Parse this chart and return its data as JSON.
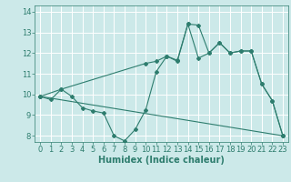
{
  "xlabel": "Humidex (Indice chaleur)",
  "xlim": [
    -0.5,
    23.5
  ],
  "ylim": [
    7.7,
    14.3
  ],
  "yticks": [
    8,
    9,
    10,
    11,
    12,
    13,
    14
  ],
  "xticks": [
    0,
    1,
    2,
    3,
    4,
    5,
    6,
    7,
    8,
    9,
    10,
    11,
    12,
    13,
    14,
    15,
    16,
    17,
    18,
    19,
    20,
    21,
    22,
    23
  ],
  "bg_color": "#cce9e9",
  "grid_color": "#ffffff",
  "line_color": "#2e7d6e",
  "lines": [
    {
      "x": [
        0,
        1,
        2,
        3,
        4,
        5,
        6,
        7,
        8,
        9,
        10,
        11,
        12,
        13,
        14,
        15,
        16,
        17,
        18,
        19,
        20,
        21,
        22,
        23
      ],
      "y": [
        9.9,
        9.75,
        10.25,
        9.9,
        9.35,
        9.2,
        9.1,
        8.0,
        7.75,
        8.3,
        9.25,
        11.1,
        11.85,
        11.6,
        13.4,
        13.35,
        12.0,
        12.5,
        12.0,
        12.1,
        12.1,
        10.5,
        9.7,
        8.0
      ]
    },
    {
      "x": [
        0,
        2,
        10,
        11,
        12,
        13,
        14,
        15,
        16,
        17,
        18,
        19,
        20,
        21,
        22,
        23
      ],
      "y": [
        9.9,
        10.25,
        11.5,
        11.6,
        11.85,
        11.65,
        13.4,
        11.75,
        12.0,
        12.5,
        12.0,
        12.1,
        12.1,
        10.5,
        9.7,
        8.0
      ]
    },
    {
      "x": [
        0,
        23
      ],
      "y": [
        9.9,
        8.0
      ]
    }
  ],
  "figsize": [
    3.2,
    2.0
  ],
  "dpi": 100,
  "tick_fontsize": 6,
  "label_fontsize": 7
}
